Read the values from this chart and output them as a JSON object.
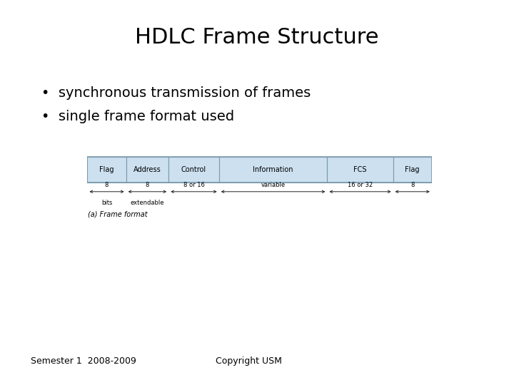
{
  "title": "HDLC Frame Structure",
  "bullets": [
    "synchronous transmission of frames",
    "single frame format used"
  ],
  "footer_left": "Semester 1  2008-2009",
  "footer_right": "Copyright USM",
  "frame_fields": [
    "Flag",
    "Address",
    "Control",
    "Information",
    "FCS",
    "Flag"
  ],
  "field_widths": [
    1.0,
    1.1,
    1.3,
    2.8,
    1.7,
    1.0
  ],
  "field_fill": "#cce0f0",
  "field_edge": "#7a9aaa",
  "caption": "(a) Frame format",
  "background_color": "#ffffff",
  "text_color": "#000000",
  "title_fontsize": 22,
  "bullet_fontsize": 14,
  "footer_fontsize": 9,
  "diagram_field_fontsize": 7,
  "diagram_arrow_fontsize": 6,
  "diagram_caption_fontsize": 7
}
